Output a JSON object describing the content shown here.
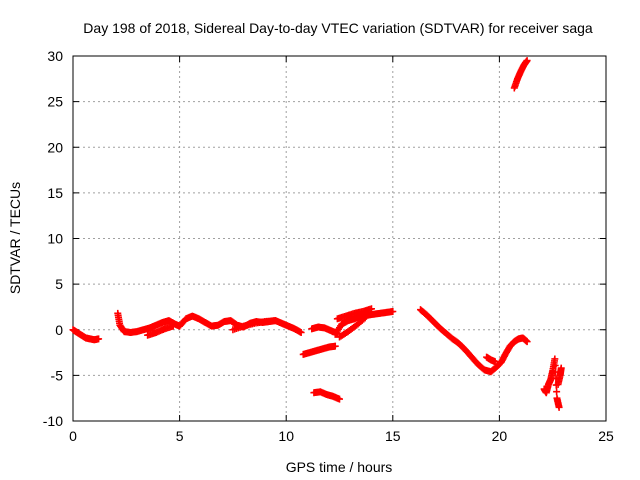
{
  "chart_data": {
    "type": "scatter",
    "title": "Day 198 of 2018, Sidereal Day-to-day VTEC variation (SDTVAR) for receiver saga",
    "xlabel": "GPS time / hours",
    "ylabel": "SDTVAR / TECUs",
    "xlim": [
      0,
      25
    ],
    "ylim": [
      -10,
      30
    ],
    "xticks": [
      0,
      5,
      10,
      15,
      20,
      25
    ],
    "yticks": [
      -10,
      -5,
      0,
      5,
      10,
      15,
      20,
      25,
      30
    ],
    "grid": true,
    "marker": "+",
    "color": "#ff0000",
    "series": [
      {
        "name": "seg1",
        "x": [
          0,
          0.2,
          0.4,
          0.6,
          0.8,
          1.0,
          1.2
        ],
        "y": [
          0.0,
          -0.3,
          -0.6,
          -0.9,
          -1.0,
          -1.1,
          -1.0
        ]
      },
      {
        "name": "seg2",
        "x": [
          2.1,
          2.2,
          2.4,
          2.7,
          3.0,
          3.3,
          3.6,
          3.9,
          4.2,
          4.5,
          4.8,
          5.0,
          5.3,
          5.6,
          5.9,
          6.2,
          6.5,
          6.8,
          7.1,
          7.4,
          7.7,
          8.0,
          8.3,
          8.6,
          8.9,
          9.2,
          9.5,
          9.8,
          10.1,
          10.4,
          10.7
        ],
        "y": [
          1.8,
          0.5,
          -0.2,
          -0.3,
          -0.2,
          0.0,
          0.2,
          0.5,
          0.8,
          1.0,
          0.6,
          0.4,
          1.2,
          1.5,
          1.2,
          0.8,
          0.4,
          0.5,
          0.9,
          1.0,
          0.5,
          0.3,
          0.7,
          0.9,
          0.8,
          0.9,
          1.0,
          0.7,
          0.4,
          0.1,
          -0.3
        ]
      },
      {
        "name": "seg3",
        "x": [
          3.5,
          3.9,
          4.3,
          4.7
        ],
        "y": [
          -0.6,
          -0.3,
          0.1,
          0.4
        ]
      },
      {
        "name": "seg4",
        "x": [
          7.5,
          8.0,
          8.5,
          9.0,
          9.5
        ],
        "y": [
          0.0,
          0.4,
          0.7,
          0.9,
          1.0
        ]
      },
      {
        "name": "seg5",
        "x": [
          10.8,
          11.1,
          11.4,
          11.7,
          12.0,
          12.3
        ],
        "y": [
          -2.7,
          -2.5,
          -2.3,
          -2.1,
          -1.9,
          -1.8
        ]
      },
      {
        "name": "seg6",
        "x": [
          11.2,
          11.5,
          11.8,
          12.1,
          12.4
        ],
        "y": [
          0.1,
          0.3,
          0.2,
          -0.1,
          -0.4
        ]
      },
      {
        "name": "seg7",
        "x": [
          11.3,
          11.6,
          11.9,
          12.2,
          12.5
        ],
        "y": [
          -6.9,
          -6.8,
          -7.1,
          -7.3,
          -7.6
        ]
      },
      {
        "name": "seg8",
        "x": [
          12.3,
          12.6,
          12.9,
          13.2,
          13.5,
          13.8,
          14.1,
          14.4,
          14.7,
          15.0
        ],
        "y": [
          -0.5,
          0.6,
          1.0,
          1.2,
          1.5,
          1.6,
          1.7,
          1.8,
          1.9,
          2.0
        ]
      },
      {
        "name": "seg9",
        "x": [
          12.4,
          12.8,
          13.2,
          13.6,
          14.0
        ],
        "y": [
          1.2,
          1.5,
          1.8,
          2.0,
          2.3
        ]
      },
      {
        "name": "seg10",
        "x": [
          12.5,
          12.9,
          13.3,
          13.7
        ],
        "y": [
          -0.8,
          -0.2,
          0.5,
          1.3
        ]
      },
      {
        "name": "seg11",
        "x": [
          16.3,
          16.6,
          16.9,
          17.2,
          17.5,
          17.8,
          18.1,
          18.4,
          18.7,
          19.0,
          19.3,
          19.6,
          19.9,
          20.1,
          20.3,
          20.5,
          20.7,
          20.9,
          21.1,
          21.3
        ],
        "y": [
          2.2,
          1.6,
          0.9,
          0.2,
          -0.4,
          -1.0,
          -1.5,
          -2.2,
          -3.0,
          -3.8,
          -4.4,
          -4.6,
          -4.0,
          -3.5,
          -2.6,
          -1.8,
          -1.3,
          -1.0,
          -0.9,
          -1.3
        ]
      },
      {
        "name": "seg12",
        "x": [
          19.4,
          19.6,
          19.8
        ],
        "y": [
          -3.0,
          -3.3,
          -3.5
        ]
      },
      {
        "name": "seg13",
        "x": [
          20.7,
          20.85,
          21.0,
          21.15,
          21.3
        ],
        "y": [
          26.5,
          27.5,
          28.3,
          29.0,
          29.5
        ]
      },
      {
        "name": "seg14",
        "x": [
          22.1,
          22.2,
          22.3,
          22.4,
          22.5,
          22.6,
          22.7,
          22.8
        ],
        "y": [
          -6.5,
          -6.9,
          -6.0,
          -5.5,
          -4.5,
          -3.2,
          -7.5,
          -8.5
        ]
      },
      {
        "name": "seg15",
        "x": [
          22.75,
          22.85,
          22.9
        ],
        "y": [
          -6.0,
          -5.0,
          -4.2
        ]
      }
    ]
  }
}
